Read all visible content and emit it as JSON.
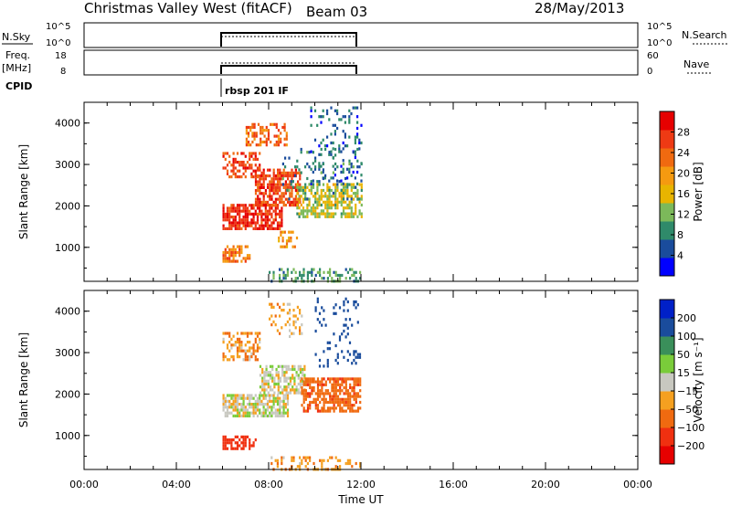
{
  "header": {
    "station": "Christmas Valley West (fitACF)",
    "beam": "Beam 03",
    "date": "28/May/2013"
  },
  "top_panels": {
    "nsky": {
      "label": "N.Sky",
      "left_ticks": [
        "10^5",
        "10^0"
      ],
      "right_ticks": [
        "10^5",
        "10^0"
      ],
      "right_label": "N.Search"
    },
    "freq": {
      "label_line1": "Freq.",
      "label_line2": "[MHz]",
      "left_ticks": [
        "18",
        "8"
      ],
      "right_ticks": [
        "60",
        "0"
      ],
      "right_label": "Nave"
    },
    "cpid": {
      "label": "CPID",
      "annotation": "rbsp 201 IF"
    }
  },
  "colors": {
    "power": [
      "#0000ff",
      "#1a4c9c",
      "#2f8a6a",
      "#7cb95a",
      "#e8b400",
      "#f59a10",
      "#f06a10",
      "#ee3a14",
      "#e60000"
    ],
    "velocity": [
      "#e60000",
      "#f03010",
      "#f06a10",
      "#f5a020",
      "#c8c8c0",
      "#7acc3a",
      "#3a8f5a",
      "#1a4c9c",
      "#0020c8"
    ]
  },
  "chart_data": [
    {
      "type": "heatmap",
      "id": "power",
      "ylabel": "Slant Range [km]",
      "xlabel": "",
      "yticks": [
        "1000",
        "2000",
        "3000",
        "4000"
      ],
      "ylim": [
        180,
        4500
      ],
      "xlim_hours": [
        0,
        24
      ],
      "colorbar_label": "Power [dB]",
      "colorbar_ticks": [
        "4",
        "8",
        "12",
        "16",
        "20",
        "24",
        "28"
      ],
      "colorbar_range": [
        0,
        32
      ],
      "regions": [
        {
          "t0": 6.0,
          "t1": 8.6,
          "r0": 1450,
          "r1": 2050,
          "v": 28,
          "density": 0.75
        },
        {
          "t0": 7.4,
          "t1": 9.4,
          "r0": 2000,
          "r1": 2900,
          "v": 26,
          "density": 0.7
        },
        {
          "t0": 6.0,
          "t1": 7.6,
          "r0": 2700,
          "r1": 3300,
          "v": 26,
          "density": 0.5
        },
        {
          "t0": 7.0,
          "t1": 8.8,
          "r0": 3500,
          "r1": 4000,
          "v": 24,
          "density": 0.45
        },
        {
          "t0": 6.0,
          "t1": 7.2,
          "r0": 650,
          "r1": 1050,
          "v": 22,
          "density": 0.55
        },
        {
          "t0": 8.4,
          "t1": 9.2,
          "r0": 1000,
          "r1": 1400,
          "v": 20,
          "density": 0.35
        },
        {
          "t0": 9.2,
          "t1": 12.0,
          "r0": 1750,
          "r1": 2550,
          "v": 14,
          "density": 0.6
        },
        {
          "t0": 9.8,
          "t1": 12.0,
          "r0": 2500,
          "r1": 4400,
          "v": 6,
          "density": 0.18
        },
        {
          "t0": 8.5,
          "t1": 12.0,
          "r0": 2200,
          "r1": 3400,
          "v": 8,
          "density": 0.12
        },
        {
          "t0": 8.0,
          "t1": 12.0,
          "r0": 200,
          "r1": 500,
          "v": 10,
          "density": 0.35
        }
      ]
    },
    {
      "type": "heatmap",
      "id": "velocity",
      "ylabel": "Slant Range [km]",
      "xlabel": "Time UT",
      "xticks": [
        "00:00",
        "04:00",
        "08:00",
        "12:00",
        "16:00",
        "20:00",
        "00:00"
      ],
      "yticks": [
        "1000",
        "2000",
        "3000",
        "4000"
      ],
      "ylim": [
        180,
        4500
      ],
      "xlim_hours": [
        0,
        24
      ],
      "colorbar_label": "Velocity [m s⁻¹]",
      "colorbar_ticks": [
        "200",
        "100",
        "50",
        "15",
        "−15",
        "−50",
        "−100",
        "−200"
      ],
      "regions": [
        {
          "t0": 6.0,
          "t1": 8.8,
          "r0": 1500,
          "r1": 2000,
          "v": 0,
          "density": 0.75
        },
        {
          "t0": 7.6,
          "t1": 9.6,
          "r0": 2000,
          "r1": 2700,
          "v": 0,
          "density": 0.65
        },
        {
          "t0": 9.4,
          "t1": 12.0,
          "r0": 1600,
          "r1": 2400,
          "v": -80,
          "density": 0.65
        },
        {
          "t0": 6.0,
          "t1": 7.6,
          "r0": 2800,
          "r1": 3500,
          "v": -40,
          "density": 0.5
        },
        {
          "t0": 6.0,
          "t1": 7.4,
          "r0": 650,
          "r1": 1000,
          "v": -150,
          "density": 0.55
        },
        {
          "t0": 10.0,
          "t1": 12.0,
          "r0": 2700,
          "r1": 4400,
          "v": 150,
          "density": 0.12
        },
        {
          "t0": 8.0,
          "t1": 9.4,
          "r0": 3400,
          "r1": 4200,
          "v": -30,
          "density": 0.25
        },
        {
          "t0": 8.0,
          "t1": 12.0,
          "r0": 200,
          "r1": 500,
          "v": -40,
          "density": 0.3
        }
      ]
    }
  ]
}
